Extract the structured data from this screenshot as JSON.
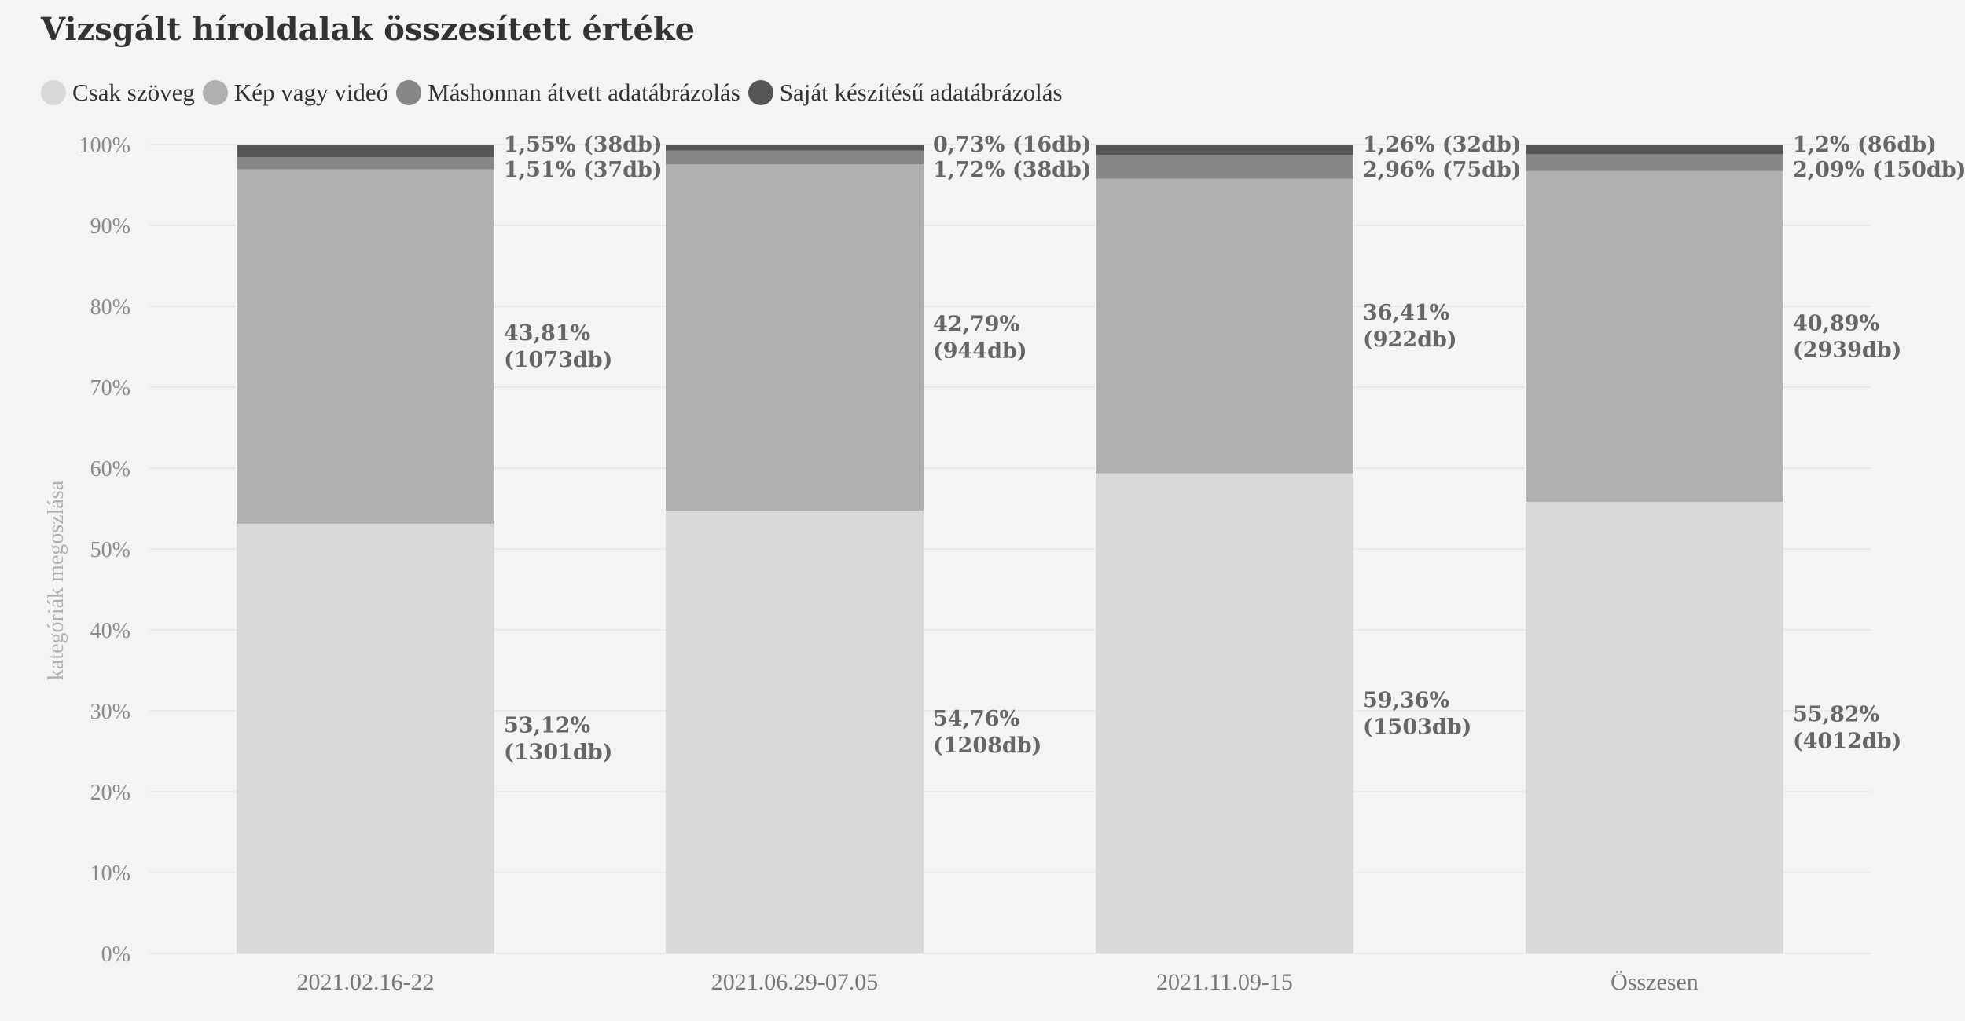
{
  "page": {
    "title": "Vizsgált híroldalak összesített értéke"
  },
  "chart_data": {
    "type": "bar",
    "stacked": true,
    "categories": [
      "2021.02.16-22",
      "2021.06.29-07.05",
      "2021.11.09-15",
      "Összesen"
    ],
    "ylabel": "kategóriák megoszlása",
    "ylim": [
      0,
      100
    ],
    "yticks": [
      "0%",
      "10%",
      "20%",
      "30%",
      "40%",
      "50%",
      "60%",
      "70%",
      "80%",
      "90%",
      "100%"
    ],
    "grid": true,
    "legend_position": "top-left",
    "series": [
      {
        "name": "Csak szöveg",
        "color": "#d9d9d9",
        "values": [
          53.12,
          54.76,
          59.36,
          55.82
        ],
        "labels": [
          [
            "53,12%",
            "(1301db)"
          ],
          [
            "54,76%",
            "(1208db)"
          ],
          [
            "59,36%",
            "(1503db)"
          ],
          [
            "55,82%",
            "(4012db)"
          ]
        ]
      },
      {
        "name": "Kép vagy videó",
        "color": "#b0b0b0",
        "values": [
          43.81,
          42.79,
          36.41,
          40.89
        ],
        "labels": [
          [
            "43,81%",
            "(1073db)"
          ],
          [
            "42,79%",
            "(944db)"
          ],
          [
            "36,41%",
            "(922db)"
          ],
          [
            "40,89%",
            "(2939db)"
          ]
        ]
      },
      {
        "name": "Máshonnan átvett adatábrázolás",
        "color": "#878787",
        "values": [
          1.51,
          1.72,
          2.96,
          2.09
        ],
        "labels": [
          [
            "1,51% (37db)"
          ],
          [
            "1,72% (38db)"
          ],
          [
            "2,96% (75db)"
          ],
          [
            "2,09% (150db)"
          ]
        ]
      },
      {
        "name": "Saját készítésű adatábrázolás",
        "color": "#555555",
        "values": [
          1.55,
          0.73,
          1.26,
          1.2
        ],
        "labels": [
          [
            "1,55% (38db)"
          ],
          [
            "0,73% (16db)"
          ],
          [
            "1,26% (32db)"
          ],
          [
            "1,2% (86db)"
          ]
        ]
      }
    ]
  }
}
